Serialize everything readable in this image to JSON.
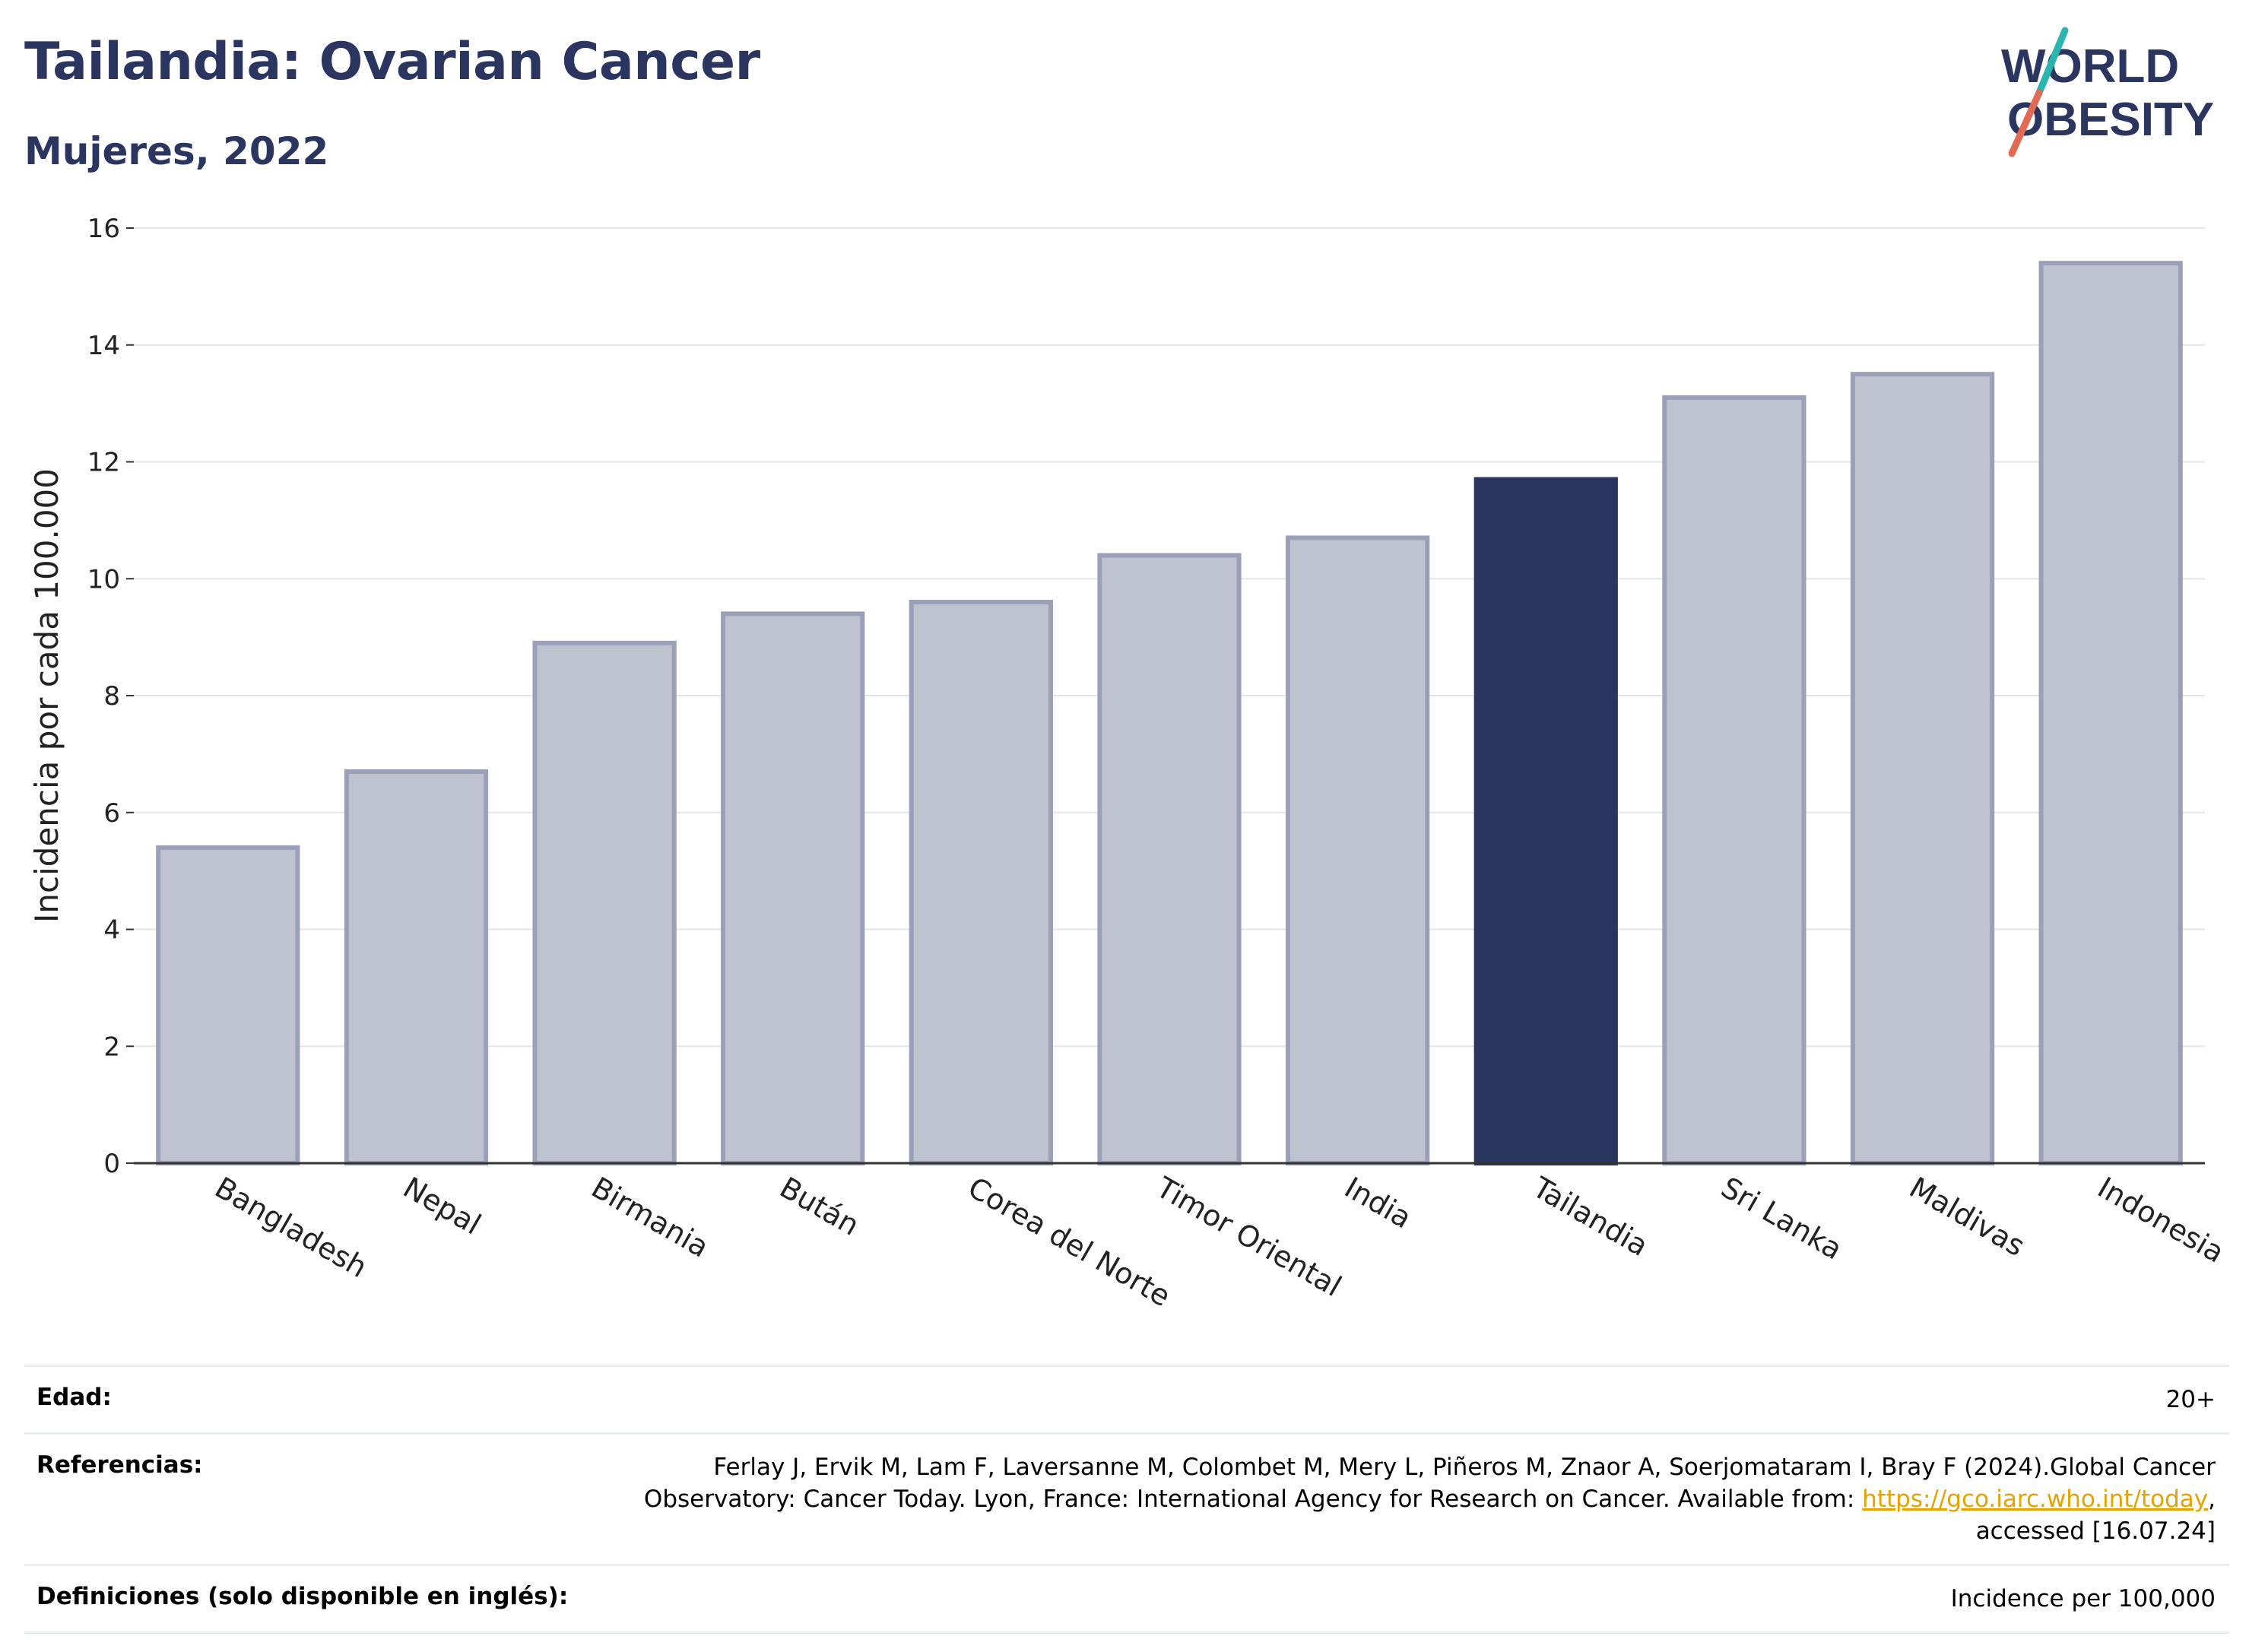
{
  "header": {
    "title": "Tailandia: Ovarian Cancer",
    "subtitle": "Mujeres, 2022",
    "logo_line1": "WORLD",
    "logo_line2": "OBESITY"
  },
  "chart_data": {
    "type": "bar",
    "title": "Tailandia: Ovarian Cancer",
    "subtitle": "Mujeres, 2022",
    "xlabel": "",
    "ylabel": "Incidencia por cada 100.000",
    "ylim": [
      0,
      16
    ],
    "yticks": [
      0,
      2,
      4,
      6,
      8,
      10,
      12,
      14,
      16
    ],
    "grid": true,
    "categories": [
      "Bangladesh",
      "Nepal",
      "Birmania",
      "Bután",
      "Corea del Norte",
      "Timor Oriental",
      "India",
      "Tailandia",
      "Sri Lanka",
      "Maldivas",
      "Indonesia"
    ],
    "values": [
      5.4,
      6.7,
      8.9,
      9.4,
      9.6,
      10.4,
      10.7,
      11.7,
      13.1,
      13.5,
      15.4
    ],
    "highlight": "Tailandia",
    "colors": {
      "bar": "#bfc3d0",
      "bar_border": "#9aa0b8",
      "highlight": "#2a3560"
    }
  },
  "footer": {
    "rows": [
      {
        "key": "Edad:",
        "value": "20+"
      },
      {
        "key": "Referencias:",
        "value_line1": "Ferlay J, Ervik M, Lam F, Laversanne M, Colombet M, Mery L, Piñeros M, Znaor A, Soerjomataram I, Bray F (2024).Global Cancer",
        "value_line2_pre": "Observatory: Cancer Today. Lyon, France: International Agency for Research on Cancer. Available from: ",
        "link": "https://gco.iarc.who.int/today",
        "value_line2_post": ",",
        "value_line3": "accessed [16.07.24]"
      },
      {
        "key": "Definiciones (solo disponible en inglés):",
        "value": "Incidence per 100,000"
      }
    ]
  }
}
